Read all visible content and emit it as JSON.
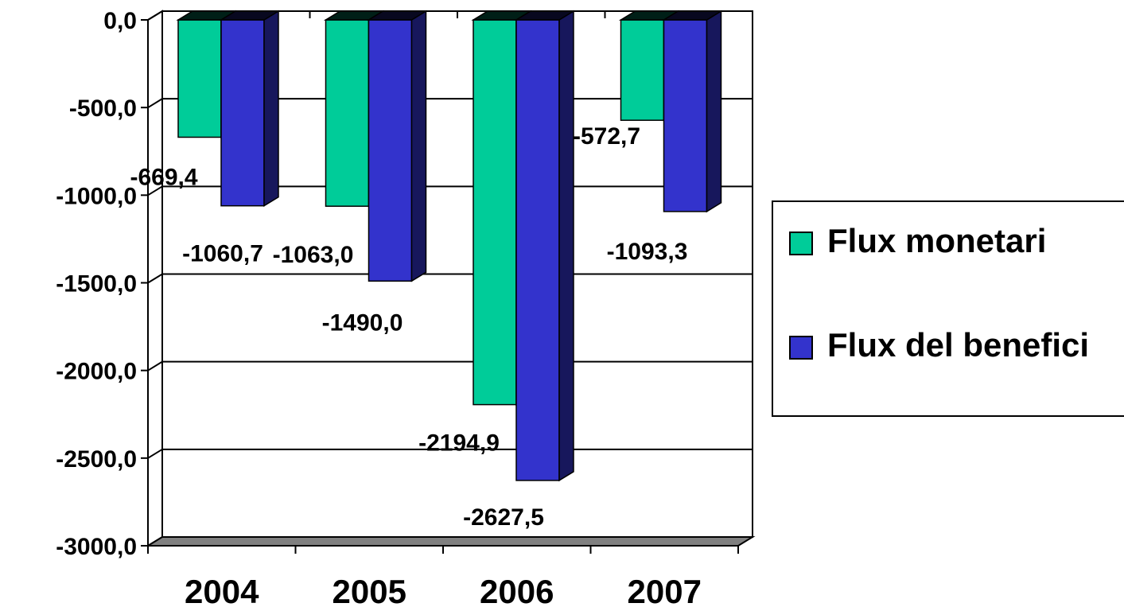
{
  "chart_data": {
    "type": "bar",
    "categories": [
      "2004",
      "2005",
      "2006",
      "2007"
    ],
    "series": [
      {
        "name": "Flux monetari",
        "color": "#00CC99",
        "values": [
          -669.4,
          -1063.0,
          -2194.9,
          -572.7
        ]
      },
      {
        "name": "Flux del benefici",
        "color": "#3333CC",
        "values": [
          -1060.7,
          -1490.0,
          -2627.5,
          -1093.3
        ]
      }
    ],
    "data_labels": [
      [
        "-669,4",
        "-1063,0",
        "-2194,9",
        "-572,7"
      ],
      [
        "-1060,7",
        "-1490,0",
        "-2627,5",
        "-1093,3"
      ]
    ],
    "y_ticks": [
      0,
      -500,
      -1000,
      -1500,
      -2000,
      -2500,
      -3000
    ],
    "y_tick_labels": [
      "0,0",
      "-500,0",
      "-1000,0",
      "-1500,0",
      "-2000,0",
      "-2500,0",
      "-3000,0"
    ],
    "ylim": [
      -3000,
      0
    ],
    "title": "",
    "xlabel": "",
    "ylabel": "",
    "grid": true,
    "legend_position": "right"
  }
}
